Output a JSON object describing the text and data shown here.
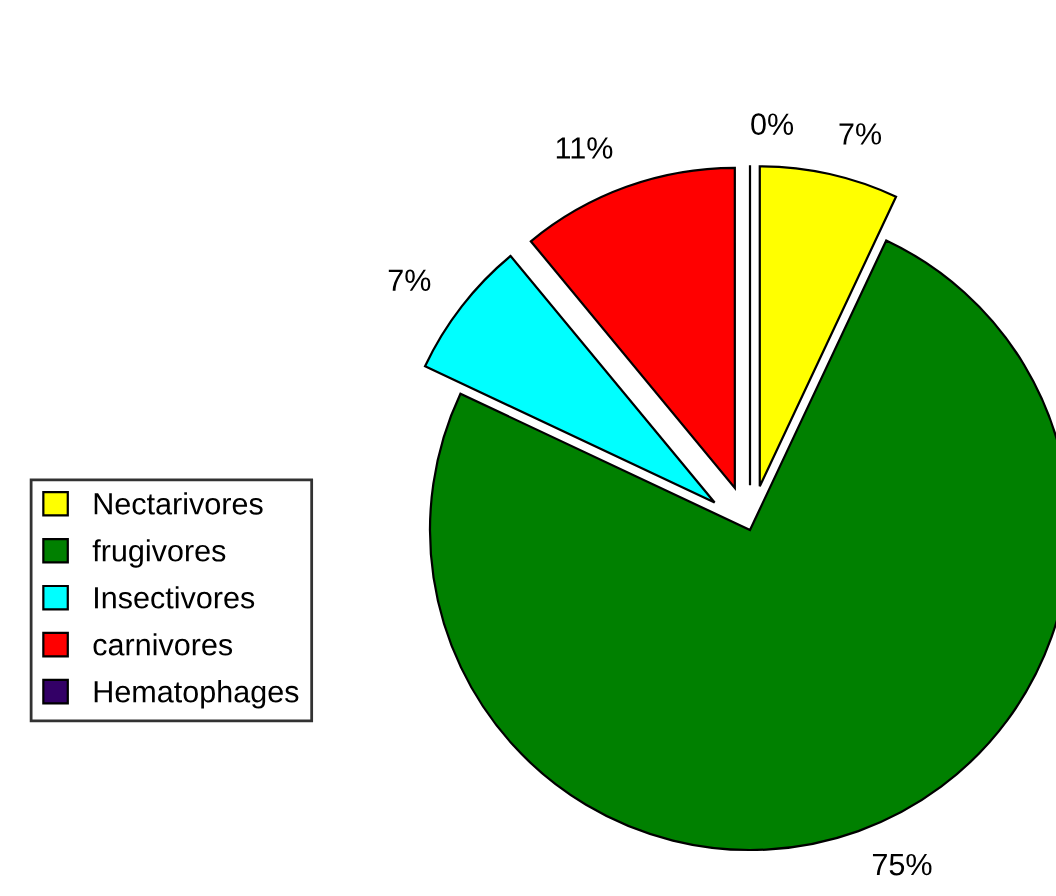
{
  "chart_data": {
    "type": "pie",
    "categories": [
      "Nectarivores",
      "frugivores",
      "Insectivores",
      "carnivores",
      "Hematophages"
    ],
    "values": [
      7,
      75,
      7,
      11,
      0
    ],
    "colors": [
      "#ffff00",
      "#008000",
      "#00ffff",
      "#ff0000",
      "#330066"
    ],
    "value_labels": [
      "7%",
      "75%",
      "7%",
      "11%",
      "0%"
    ],
    "legend": "left"
  }
}
